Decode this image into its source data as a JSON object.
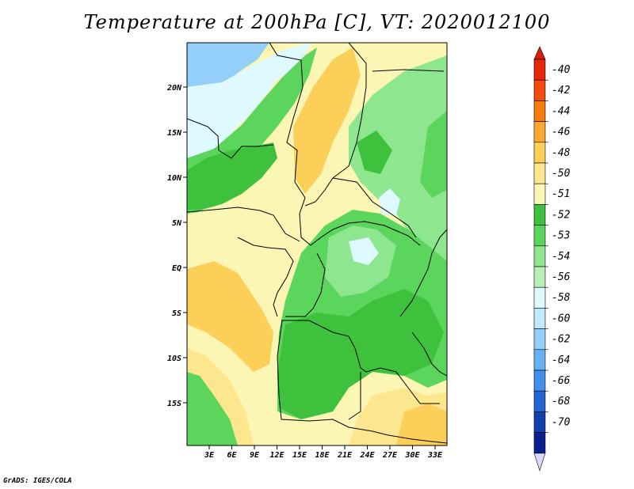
{
  "title": "Temperature at 200hPa [C], VT: 2020012100",
  "credit": "GrADS: IGES/COLA",
  "map": {
    "lat_labels": [
      "20N",
      "15N",
      "10N",
      "5N",
      "EQ",
      "5S",
      "10S",
      "15S"
    ],
    "lon_labels": [
      "3E",
      "6E",
      "9E",
      "12E",
      "15E",
      "18E",
      "21E",
      "24E",
      "27E",
      "30E",
      "33E"
    ]
  },
  "colorbar": {
    "labels": [
      "-40",
      "-42",
      "-44",
      "-46",
      "-48",
      "-50",
      "-51",
      "-52",
      "-53",
      "-54",
      "-56",
      "-58",
      "-60",
      "-62",
      "-64",
      "-66",
      "-68",
      "-70"
    ],
    "colors": [
      "#e8260a",
      "#f24b0b",
      "#f77d0d",
      "#fba830",
      "#fbcf58",
      "#fde78e",
      "#fbf6b4",
      "#3ec23e",
      "#5cd55c",
      "#8ee68e",
      "#b8f1b8",
      "#def9ff",
      "#bfe9fc",
      "#93cff9",
      "#66b1f3",
      "#418fea",
      "#2266d6",
      "#1240b0",
      "#0a1f8f"
    ],
    "top_cap_color": "#d51f05",
    "bottom_cap_color": "#d8d8fb"
  },
  "fields": {
    "colors": {
      "yellow_50": "#fde78e",
      "yellow_51": "#fbf6b4",
      "yellow_48": "#fbcf58",
      "green_52": "#3ec23e",
      "green_53": "#5cd55c",
      "green_54": "#8ee68e",
      "green_light": "#b8f1b8",
      "cyan_56": "#def9ff",
      "blue_58": "#93cff9"
    }
  }
}
